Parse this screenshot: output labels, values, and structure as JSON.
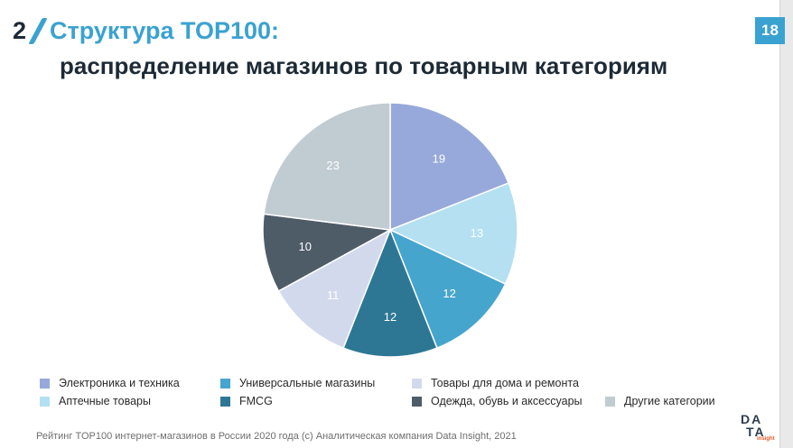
{
  "header": {
    "slide_number": "2",
    "title": "Структура TOP100:",
    "subtitle": "распределение магазинов по товарным категориям",
    "page_number": "18"
  },
  "footer": {
    "source_text": "Рейтинг TOP100 интернет-магазинов в России 2020 года (с) Аналитическая компания Data Insight, 2021"
  },
  "logo": {
    "line1": "DA",
    "line2": "TA",
    "line3": "insight"
  },
  "colors": {
    "accent": "#3aa2d0",
    "dark": "#1d2a36"
  },
  "chart_data": {
    "type": "pie",
    "title": "",
    "legend_position": "bottom",
    "series": [
      {
        "name": "Электроника и техника",
        "value": 19,
        "color": "#97a9da"
      },
      {
        "name": "Аптечные товары",
        "value": 13,
        "color": "#b4e0f2"
      },
      {
        "name": "Универсальные магазины",
        "value": 12,
        "color": "#46a5cd"
      },
      {
        "name": "FMCG",
        "value": 12,
        "color": "#2d7795"
      },
      {
        "name": "Товары для дома и ремонта",
        "value": 11,
        "color": "#d3d9ed"
      },
      {
        "name": "Одежда, обувь и аксессуары",
        "value": 10,
        "color": "#4e5c68"
      },
      {
        "name": "Другие категории",
        "value": 23,
        "color": "#c1cbd2"
      }
    ]
  }
}
